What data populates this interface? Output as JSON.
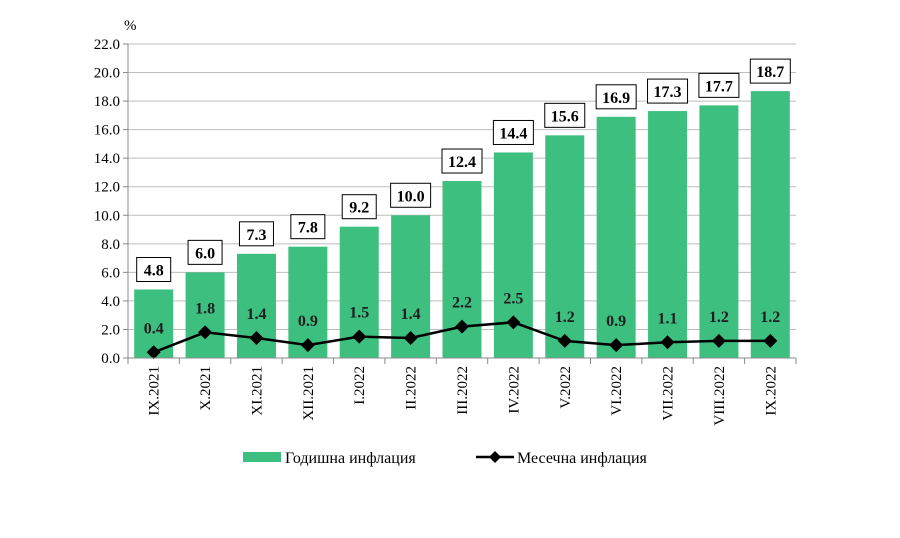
{
  "chart_data": {
    "type": "bar+line",
    "unit_label": "%",
    "categories": [
      "IX.2021",
      "X.2021",
      "XI.2021",
      "XII.2021",
      "I.2022",
      "II.2022",
      "III.2022",
      "IV.2022",
      "V.2022",
      "VI.2022",
      "VII.2022",
      "VIII.2022",
      "IX.2022"
    ],
    "ylim": [
      0,
      22
    ],
    "yticks": [
      "0.0",
      "2.0",
      "4.0",
      "6.0",
      "8.0",
      "10.0",
      "12.0",
      "14.0",
      "16.0",
      "18.0",
      "20.0",
      "22.0"
    ],
    "grid": true,
    "legend_placement": "bottom",
    "series": [
      {
        "name": "Годишна инфлация",
        "type": "bar",
        "color": "#3dbf7f",
        "values": [
          4.8,
          6.0,
          7.3,
          7.8,
          9.2,
          10.0,
          12.4,
          14.4,
          15.6,
          16.9,
          17.3,
          17.7,
          18.7
        ],
        "labels": [
          "4.8",
          "6.0",
          "7.3",
          "7.8",
          "9.2",
          "10.0",
          "12.4",
          "14.4",
          "15.6",
          "16.9",
          "17.3",
          "17.7",
          "18.7"
        ]
      },
      {
        "name": "Месечна инфлация",
        "type": "line",
        "color": "#000000",
        "marker": "diamond",
        "values": [
          0.4,
          1.8,
          1.4,
          0.9,
          1.5,
          1.4,
          2.2,
          2.5,
          1.2,
          0.9,
          1.1,
          1.2,
          1.2
        ],
        "labels": [
          "0.4",
          "1.8",
          "1.4",
          "0.9",
          "1.5",
          "1.4",
          "2.2",
          "2.5",
          "1.2",
          "0.9",
          "1.1",
          "1.2",
          "1.2"
        ]
      }
    ]
  }
}
